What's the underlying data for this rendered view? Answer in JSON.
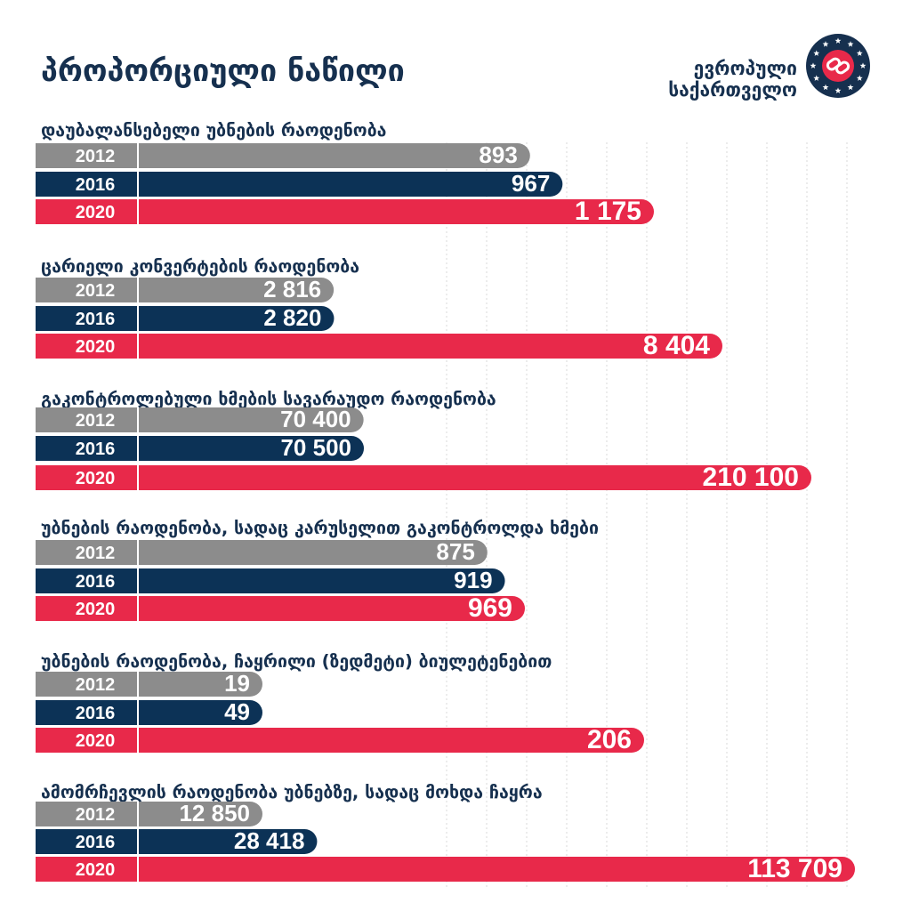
{
  "header": {
    "title": "პროპორციული ნაწილი",
    "logo_text_line1": "ევროპული",
    "logo_text_line2": "საქართველო"
  },
  "colors": {
    "title": "#16304f",
    "bar_2012": "#8c8c8c",
    "bar_2016": "#0c3256",
    "bar_2020": "#e8294a",
    "grid": "#d9d9d9",
    "bar_label": "#ffffff",
    "logo_ring": "#16304f",
    "logo_star": "#ffffff",
    "logo_center": "#e8294a"
  },
  "chart_data": [
    {
      "type": "bar",
      "orientation": "horizontal",
      "title": "დაუბალანსებელი უბნების რაოდენობა",
      "categories": [
        "2012",
        "2016",
        "2020"
      ],
      "values": [
        893,
        967,
        1175
      ],
      "value_labels": [
        "893",
        "967",
        "1 175"
      ]
    },
    {
      "type": "bar",
      "orientation": "horizontal",
      "title": "ცარიელი კონვერტების რაოდენობა",
      "categories": [
        "2012",
        "2016",
        "2020"
      ],
      "values": [
        2816,
        2820,
        8404
      ],
      "value_labels": [
        "2 816",
        "2 820",
        "8 404"
      ]
    },
    {
      "type": "bar",
      "orientation": "horizontal",
      "title": "გაკონტროლებული ხმების სავარაუდო რაოდენობა",
      "categories": [
        "2012",
        "2016",
        "2020"
      ],
      "values": [
        70400,
        70500,
        210100
      ],
      "value_labels": [
        "70 400",
        "70 500",
        "210 100"
      ]
    },
    {
      "type": "bar",
      "orientation": "horizontal",
      "title": "უბნების რაოდენობა, სადაც კარუსელით გაკონტროლდა ხმები",
      "categories": [
        "2012",
        "2016",
        "2020"
      ],
      "values": [
        875,
        919,
        969
      ],
      "value_labels": [
        "875",
        "919",
        "969"
      ]
    },
    {
      "type": "bar",
      "orientation": "horizontal",
      "title": "უბნების რაოდენობა, ჩაყრილი (ზედმეტი) ბიულეტენებით",
      "categories": [
        "2012",
        "2016",
        "2020"
      ],
      "values": [
        19,
        49,
        206
      ],
      "value_labels": [
        "19",
        "49",
        "206"
      ]
    },
    {
      "type": "bar",
      "orientation": "horizontal",
      "title": "ამომრჩევლის რაოდენობა უბნებზე, სადაც მოხდა ჩაყრა",
      "categories": [
        "2012",
        "2016",
        "2020"
      ],
      "values": [
        12850,
        28418,
        113709
      ],
      "value_labels": [
        "12 850",
        "28 418",
        "113 709"
      ]
    }
  ]
}
